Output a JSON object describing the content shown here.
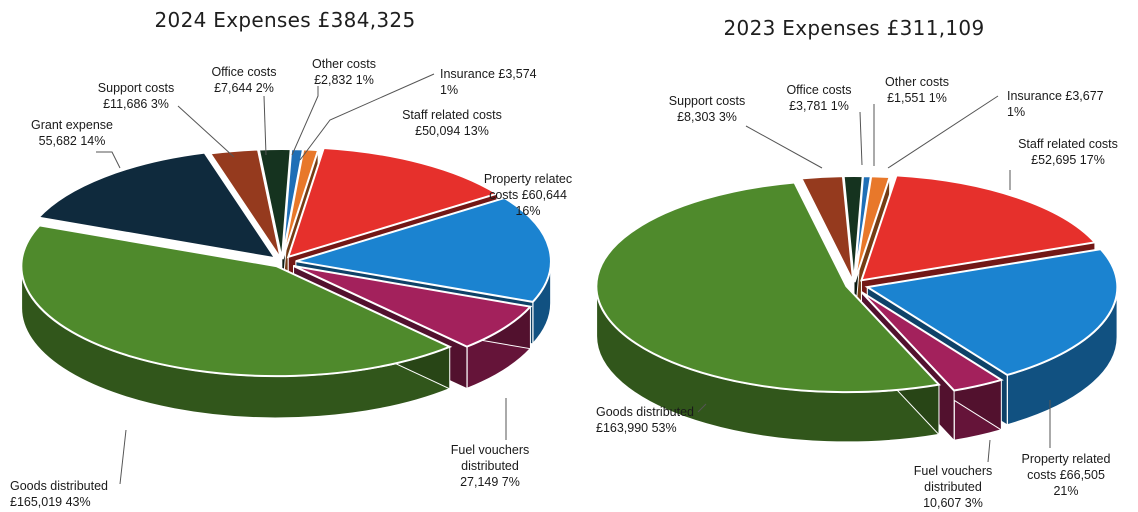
{
  "chart_data": [
    {
      "type": "pie",
      "title": "2024 Expenses £384,325",
      "slices": [
        {
          "label_lines": [
            "Other costs",
            "£2,832 1%"
          ],
          "value": 2832,
          "percent": 1,
          "color": "#1f6fb6"
        },
        {
          "label_lines": [
            "Insurance £3,574",
            "1%"
          ],
          "value": 3574,
          "percent": 1,
          "color": "#e8782a"
        },
        {
          "label_lines": [
            "Staff related costs",
            "£50,094 13%"
          ],
          "value": 50094,
          "percent": 13,
          "color": "#e6302c"
        },
        {
          "label_lines": [
            "Property relatec",
            "costs £60,644",
            "16%"
          ],
          "value": 60644,
          "percent": 16,
          "color": "#1b83d0"
        },
        {
          "label_lines": [
            "Fuel vouchers",
            "distributed",
            "27,149 7%"
          ],
          "value": 27149,
          "percent": 7,
          "color": "#a3215c"
        },
        {
          "label_lines": [
            "Goods distributed",
            "£165,019 43%"
          ],
          "value": 165019,
          "percent": 43,
          "color": "#4f8a2c"
        },
        {
          "label_lines": [
            "Grant expense",
            "55,682 14%"
          ],
          "value": 55682,
          "percent": 14,
          "color": "#0f2a3d"
        },
        {
          "label_lines": [
            "Support costs",
            "£11,686 3%"
          ],
          "value": 11686,
          "percent": 3,
          "color": "#953a1e"
        },
        {
          "label_lines": [
            "Office costs",
            "£7,644 2%"
          ],
          "value": 7644,
          "percent": 2,
          "color": "#15331f"
        }
      ]
    },
    {
      "type": "pie",
      "title": "2023 Expenses £311,109",
      "slices": [
        {
          "label_lines": [
            "Other costs",
            "£1,551 1%"
          ],
          "value": 1551,
          "percent": 1,
          "color": "#1f6fb6"
        },
        {
          "label_lines": [
            "Insurance £3,677",
            "1%"
          ],
          "value": 3677,
          "percent": 1,
          "color": "#e8782a"
        },
        {
          "label_lines": [
            "Staff related costs",
            "£52,695 17%"
          ],
          "value": 52695,
          "percent": 17,
          "color": "#e6302c"
        },
        {
          "label_lines": [
            "Property related",
            "costs £66,505",
            "21%"
          ],
          "value": 66505,
          "percent": 21,
          "color": "#1b83d0"
        },
        {
          "label_lines": [
            "Fuel vouchers",
            "distributed",
            "10,607 3%"
          ],
          "value": 10607,
          "percent": 3,
          "color": "#a3215c"
        },
        {
          "label_lines": [
            "Goods distributed",
            "£163,990 53%"
          ],
          "value": 163990,
          "percent": 53,
          "color": "#4f8a2c"
        },
        {
          "label_lines": [
            "Support costs",
            "£8,303 3%"
          ],
          "value": 8303,
          "percent": 3,
          "color": "#953a1e"
        },
        {
          "label_lines": [
            "Office costs",
            "£3,781 1%"
          ],
          "value": 3781,
          "percent": 1,
          "color": "#15331f"
        }
      ]
    }
  ]
}
